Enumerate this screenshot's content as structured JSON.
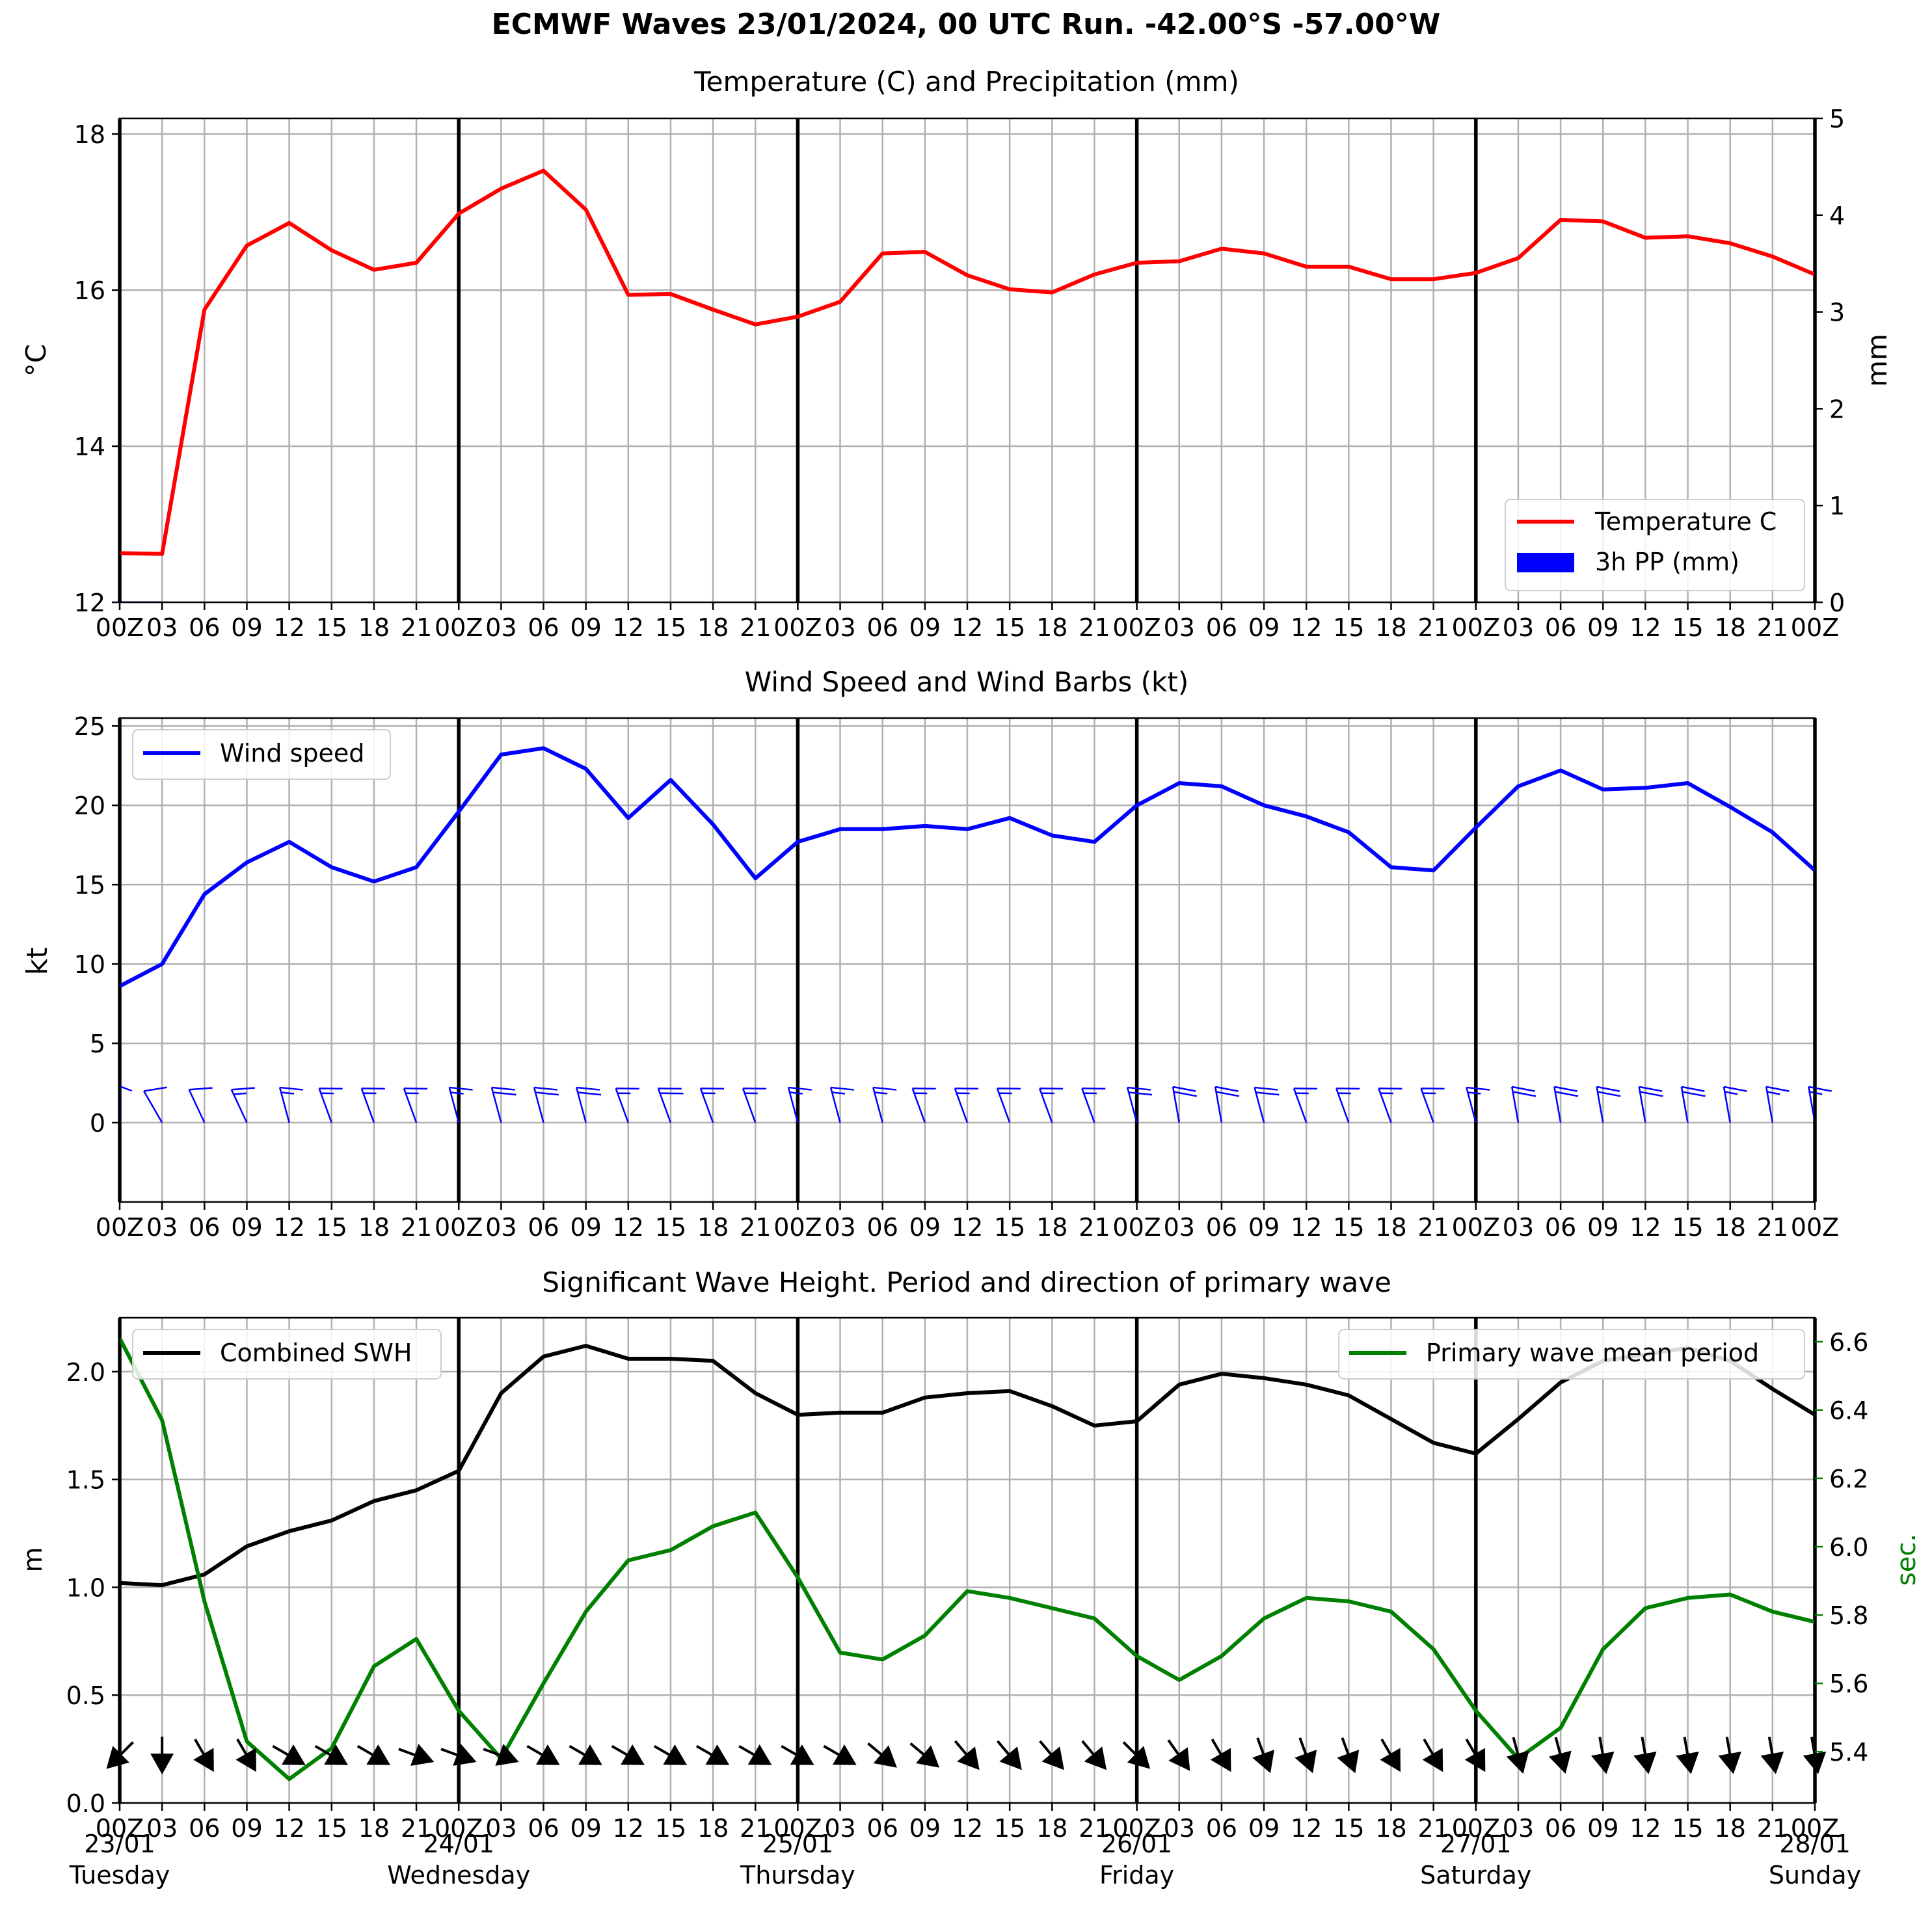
{
  "suptitle": "ECMWF Waves 23/01/2024, 00 UTC Run. -42.00°S -57.00°W",
  "time_tick_labels": [
    "00Z",
    "03",
    "06",
    "09",
    "12",
    "15",
    "18",
    "21",
    "00Z",
    "03",
    "06",
    "09",
    "12",
    "15",
    "18",
    "21",
    "00Z",
    "03",
    "06",
    "09",
    "12",
    "15",
    "18",
    "21",
    "00Z",
    "03",
    "06",
    "09",
    "12",
    "15",
    "18",
    "21",
    "00Z",
    "03",
    "06",
    "09",
    "12",
    "15",
    "18",
    "21",
    "00Z"
  ],
  "day_labels": [
    {
      "date": "23/01",
      "weekday": "Tuesday"
    },
    {
      "date": "24/01",
      "weekday": "Wednesday"
    },
    {
      "date": "25/01",
      "weekday": "Thursday"
    },
    {
      "date": "26/01",
      "weekday": "Friday"
    },
    {
      "date": "27/01",
      "weekday": "Saturday"
    },
    {
      "date": "28/01",
      "weekday": "Sunday"
    }
  ],
  "colors": {
    "temperature": "#ff0000",
    "precipitation": "#0000ff",
    "wind": "#0000ff",
    "swh": "#000000",
    "period": "#008000",
    "grid": "#b0b0b0",
    "day_line": "#000000"
  },
  "chart_data": [
    {
      "type": "line",
      "title": "Temperature (C) and Precipitation (mm)",
      "x_hours": [
        0,
        3,
        6,
        9,
        12,
        15,
        18,
        21,
        24,
        27,
        30,
        33,
        36,
        39,
        42,
        45,
        48,
        51,
        54,
        57,
        60,
        63,
        66,
        69,
        72,
        75,
        78,
        81,
        84,
        87,
        90,
        93,
        96,
        99,
        102,
        105,
        108,
        111,
        114,
        117,
        120
      ],
      "xlim": [
        0,
        120
      ],
      "ylabel": "$^\\circ$C",
      "ylim": [
        12,
        18.2
      ],
      "yticks": [
        12,
        14,
        16,
        18
      ],
      "ylabel_right": "mm",
      "ylim_right": [
        0,
        5
      ],
      "yticks_right": [
        0,
        1,
        2,
        3,
        4,
        5
      ],
      "grid": true,
      "legend_position": "lower-right",
      "series": [
        {
          "name": "Temperature C",
          "axis": "left",
          "style": "line",
          "values": [
            12.63,
            12.62,
            15.75,
            16.57,
            16.86,
            16.51,
            16.26,
            16.35,
            16.98,
            17.3,
            17.53,
            17.03,
            15.94,
            15.95,
            15.75,
            15.56,
            15.66,
            15.85,
            16.47,
            16.49,
            16.19,
            16.01,
            15.97,
            16.2,
            16.35,
            16.37,
            16.53,
            16.47,
            16.3,
            16.3,
            16.14,
            16.14,
            16.22,
            16.41,
            16.9,
            16.88,
            16.67,
            16.69,
            16.6,
            16.43,
            16.2
          ]
        },
        {
          "name": "3h PP (mm)",
          "axis": "right",
          "style": "bar",
          "values": [
            0.01,
            0,
            0,
            0,
            0,
            0,
            0,
            0,
            0,
            0,
            0,
            0,
            0,
            0,
            0,
            0,
            0,
            0,
            0,
            0,
            0,
            0,
            0,
            0,
            0,
            0,
            0,
            0,
            0,
            0,
            0,
            0,
            0,
            0,
            0,
            0,
            0,
            0,
            0,
            0,
            0
          ]
        }
      ]
    },
    {
      "type": "line",
      "title": "Wind Speed and Wind Barbs (kt)",
      "x_hours": [
        0,
        3,
        6,
        9,
        12,
        15,
        18,
        21,
        24,
        27,
        30,
        33,
        36,
        39,
        42,
        45,
        48,
        51,
        54,
        57,
        60,
        63,
        66,
        69,
        72,
        75,
        78,
        81,
        84,
        87,
        90,
        93,
        96,
        99,
        102,
        105,
        108,
        111,
        114,
        117,
        120
      ],
      "xlim": [
        0,
        120
      ],
      "ylabel": "kt",
      "ylim": [
        -5,
        25.5
      ],
      "yticks": [
        0,
        5,
        10,
        15,
        20,
        25
      ],
      "grid": true,
      "legend_position": "upper-left",
      "series": [
        {
          "name": "Wind speed",
          "values": [
            8.6,
            10.0,
            14.4,
            16.4,
            17.7,
            16.1,
            15.2,
            16.1,
            19.6,
            23.2,
            23.6,
            22.3,
            19.2,
            21.6,
            18.8,
            15.4,
            17.7,
            18.5,
            18.5,
            18.7,
            18.5,
            19.2,
            18.1,
            17.7,
            20.0,
            21.4,
            21.2,
            20.0,
            19.3,
            18.3,
            16.1,
            15.9,
            18.6,
            21.2,
            22.2,
            21.0,
            21.1,
            21.4,
            19.9,
            18.3,
            15.9
          ]
        }
      ],
      "barbs": {
        "note": "wind direction the barbs are drawn toward, degrees (0 = north, clockwise)",
        "to_direction_deg": [
          180,
          150,
          155,
          155,
          165,
          160,
          160,
          160,
          165,
          165,
          165,
          165,
          160,
          160,
          160,
          160,
          165,
          165,
          165,
          160,
          160,
          160,
          160,
          160,
          165,
          170,
          170,
          165,
          160,
          160,
          160,
          160,
          165,
          170,
          170,
          170,
          170,
          170,
          170,
          170,
          170
        ]
      }
    },
    {
      "type": "line",
      "title": "Significant Wave Height. Period and direction of primary wave",
      "x_hours": [
        0,
        3,
        6,
        9,
        12,
        15,
        18,
        21,
        24,
        27,
        30,
        33,
        36,
        39,
        42,
        45,
        48,
        51,
        54,
        57,
        60,
        63,
        66,
        69,
        72,
        75,
        78,
        81,
        84,
        87,
        90,
        93,
        96,
        99,
        102,
        105,
        108,
        111,
        114,
        117,
        120
      ],
      "xlim": [
        0,
        120
      ],
      "ylabel": "m",
      "ylim": [
        0,
        2.25
      ],
      "yticks": [
        0.0,
        0.5,
        1.0,
        1.5,
        2.0
      ],
      "ylabel_right": "sec.",
      "ylim_right": [
        5.25,
        6.67
      ],
      "yticks_right": [
        5.4,
        5.6,
        5.8,
        6.0,
        6.2,
        6.4,
        6.6
      ],
      "grid": true,
      "series": [
        {
          "name": "Combined SWH",
          "axis": "left",
          "legend_position": "upper-left",
          "values": [
            1.02,
            1.01,
            1.06,
            1.19,
            1.26,
            1.31,
            1.4,
            1.45,
            1.54,
            1.9,
            2.07,
            2.12,
            2.06,
            2.06,
            2.05,
            1.9,
            1.8,
            1.81,
            1.81,
            1.88,
            1.9,
            1.91,
            1.84,
            1.75,
            1.77,
            1.94,
            1.99,
            1.97,
            1.94,
            1.89,
            1.78,
            1.67,
            1.62,
            1.78,
            1.95,
            2.05,
            2.08,
            2.11,
            2.05,
            1.92,
            1.8
          ]
        },
        {
          "name": "Primary wave mean period",
          "axis": "right",
          "legend_position": "upper-right",
          "values": [
            6.61,
            6.37,
            5.84,
            5.43,
            5.32,
            5.41,
            5.65,
            5.73,
            5.52,
            5.38,
            5.6,
            5.81,
            5.96,
            5.99,
            6.06,
            6.1,
            5.91,
            5.69,
            5.67,
            5.74,
            5.87,
            5.85,
            5.82,
            5.79,
            5.68,
            5.61,
            5.68,
            5.79,
            5.85,
            5.84,
            5.81,
            5.7,
            5.52,
            5.38,
            5.47,
            5.7,
            5.82,
            5.85,
            5.86,
            5.81,
            5.78
          ]
        }
      ],
      "wave_arrows": {
        "note": "direction arrows for primary wave propagation, degrees (0 = toward north, clockwise)",
        "to_direction_deg": [
          225,
          180,
          150,
          150,
          120,
          120,
          120,
          110,
          110,
          110,
          120,
          120,
          120,
          120,
          120,
          120,
          120,
          120,
          130,
          130,
          140,
          140,
          140,
          140,
          135,
          145,
          150,
          160,
          160,
          160,
          150,
          150,
          150,
          165,
          165,
          170,
          170,
          170,
          170,
          170,
          170
        ]
      }
    }
  ]
}
